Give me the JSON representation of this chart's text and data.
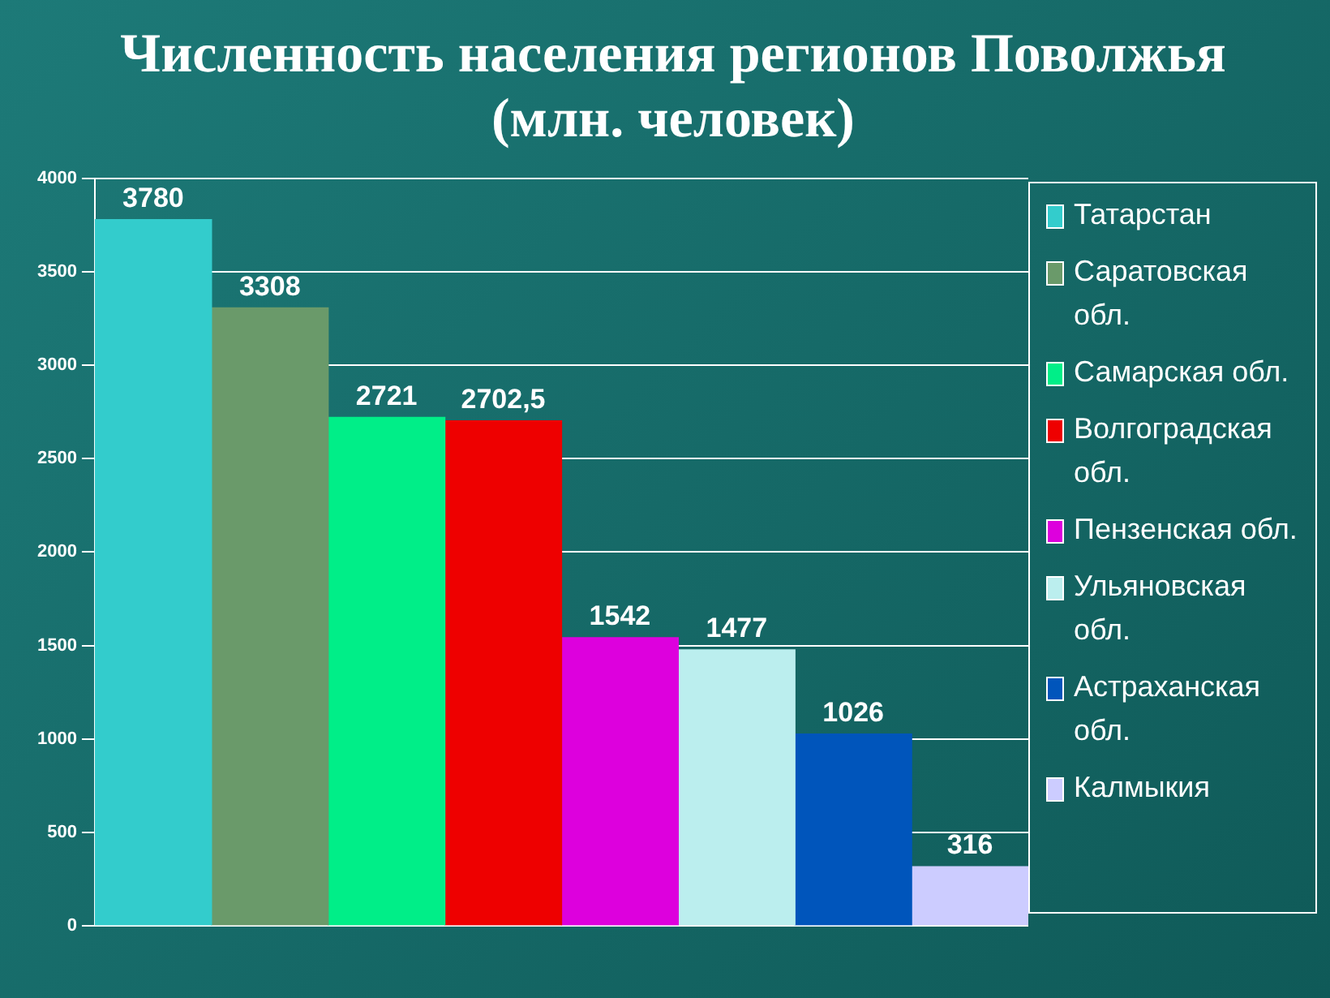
{
  "chart_data": {
    "type": "bar",
    "title": "Численность населения регионов Поволжья (млн. человек)",
    "categories": [
      null
    ],
    "ylim": [
      0,
      4000
    ],
    "yticks": [
      0,
      500,
      1000,
      1500,
      2000,
      2500,
      3000,
      3500,
      4000
    ],
    "grid": "y",
    "legend": "right",
    "series": [
      {
        "name": "Татарстан",
        "color": "#33cccc",
        "values": [
          3780
        ],
        "value_labels": [
          "3780"
        ]
      },
      {
        "name": "Саратовская обл.",
        "color": "#6a9a6a",
        "values": [
          3308
        ],
        "value_labels": [
          "3308"
        ]
      },
      {
        "name": "Самарская обл.",
        "color": "#00ee88",
        "values": [
          2721
        ],
        "value_labels": [
          "2721"
        ]
      },
      {
        "name": "Волгоградская обл.",
        "color": "#ee0000",
        "values": [
          2702.5
        ],
        "value_labels": [
          "2702,5"
        ]
      },
      {
        "name": "Пензенская обл.",
        "color": "#dd00dd",
        "values": [
          1542
        ],
        "value_labels": [
          "1542"
        ]
      },
      {
        "name": "Ульяновская обл.",
        "color": "#bbeeee",
        "values": [
          1477
        ],
        "value_labels": [
          "1477"
        ]
      },
      {
        "name": "Астраханская обл.",
        "color": "#0055bb",
        "values": [
          1026
        ],
        "value_labels": [
          "1026"
        ]
      },
      {
        "name": "Калмыкия",
        "color": "#ccccff",
        "values": [
          316
        ],
        "value_labels": [
          "316"
        ]
      }
    ]
  }
}
